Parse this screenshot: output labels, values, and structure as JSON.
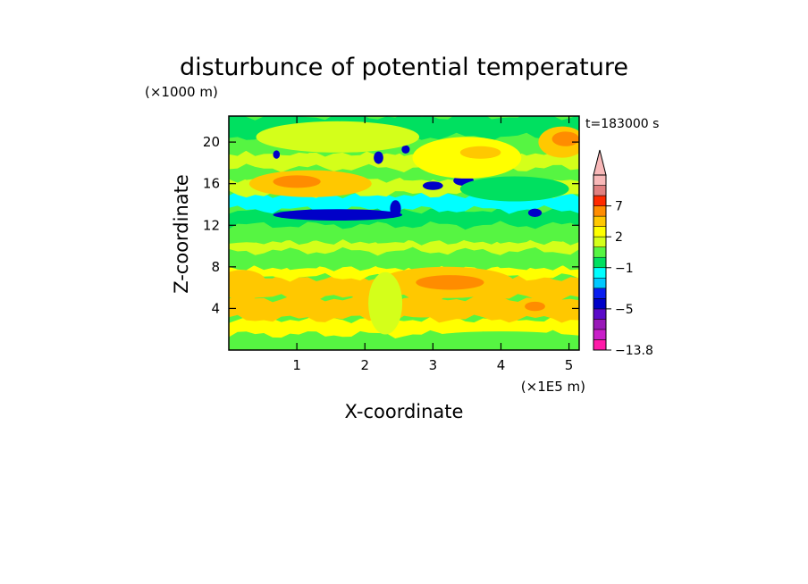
{
  "chart_data": {
    "type": "heatmap",
    "title": "disturbunce of potential temperature",
    "xlabel": "X-coordinate",
    "ylabel": "Z-coordinate",
    "x_unit": "(×1E5 m)",
    "y_unit": "(×1000 m)",
    "time_label": "t=183000 s",
    "xlim": [
      0,
      5.15
    ],
    "ylim": [
      0,
      22.5
    ],
    "x_ticks": [
      "1",
      "2",
      "3",
      "4",
      "5"
    ],
    "y_ticks": [
      "4",
      "8",
      "12",
      "16",
      "20"
    ],
    "x_tick_values": [
      1,
      2,
      3,
      4,
      5
    ],
    "y_tick_values": [
      4,
      8,
      12,
      16,
      20
    ],
    "colorbar": {
      "labels": [
        "7",
        "2",
        "−1",
        "−5",
        "−13.8"
      ],
      "label_values": [
        7,
        2,
        -1,
        -5,
        -13.8
      ],
      "levels": [
        -13.8,
        -11,
        -8,
        -6,
        -5,
        -4,
        -3,
        -2,
        -1,
        0,
        1,
        2,
        3,
        5,
        7,
        9,
        13
      ],
      "colors": [
        "#ff1aa8",
        "#c81ec8",
        "#9918b8",
        "#5a0ac8",
        "#0000c8",
        "#0a1ef0",
        "#00c8ff",
        "#00ffff",
        "#00e060",
        "#56f542",
        "#d4ff1a",
        "#ffff00",
        "#ffc800",
        "#ff8c00",
        "#ff2a00",
        "#e08080",
        "#f8b8b8"
      ],
      "extend": "max"
    },
    "bands": [
      {
        "z": [
          0,
          1.5
        ],
        "value": 0.5
      },
      {
        "z": [
          1.5,
          3
        ],
        "value": 2.5
      },
      {
        "z": [
          3,
          5
        ],
        "value": 3.2
      },
      {
        "z": [
          5,
          7
        ],
        "value": 3.5
      },
      {
        "z": [
          7,
          8
        ],
        "value": 2.5
      },
      {
        "z": [
          8,
          9.5
        ],
        "value": 0.5
      },
      {
        "z": [
          9.5,
          10.5
        ],
        "value": 1.5
      },
      {
        "z": [
          10.5,
          12
        ],
        "value": 0.5
      },
      {
        "z": [
          12,
          13.5
        ],
        "value": -0.5
      },
      {
        "z": [
          13.5,
          15
        ],
        "value": -1.5
      },
      {
        "z": [
          15,
          16.5
        ],
        "value": 1.5
      },
      {
        "z": [
          16.5,
          17.5
        ],
        "value": 0.5
      },
      {
        "z": [
          17.5,
          19
        ],
        "value": 1.5
      },
      {
        "z": [
          19,
          20.5
        ],
        "value": 0.5
      },
      {
        "z": [
          20.5,
          22.5
        ],
        "value": -0.5
      }
    ],
    "features": [
      {
        "x": 1.2,
        "z": 16.0,
        "rx": 0.9,
        "rz": 1.3,
        "value": 3.5
      },
      {
        "x": 1.0,
        "z": 16.2,
        "rx": 0.35,
        "rz": 0.6,
        "value": 5.5
      },
      {
        "x": 1.6,
        "z": 13.0,
        "rx": 0.95,
        "rz": 0.55,
        "value": -4.5
      },
      {
        "x": 2.45,
        "z": 13.6,
        "rx": 0.08,
        "rz": 0.8,
        "value": -4.5
      },
      {
        "x": 3.0,
        "z": 15.8,
        "rx": 0.15,
        "rz": 0.4,
        "value": -4.5
      },
      {
        "x": 3.45,
        "z": 16.3,
        "rx": 0.15,
        "rz": 0.5,
        "value": -4.5
      },
      {
        "x": 4.5,
        "z": 13.2,
        "rx": 0.1,
        "rz": 0.4,
        "value": -4.5
      },
      {
        "x": 0.7,
        "z": 18.8,
        "rx": 0.05,
        "rz": 0.4,
        "value": -4.5
      },
      {
        "x": 2.2,
        "z": 18.5,
        "rx": 0.07,
        "rz": 0.6,
        "value": -4.5
      },
      {
        "x": 2.6,
        "z": 19.3,
        "rx": 0.06,
        "rz": 0.4,
        "value": -4.5
      },
      {
        "x": 3.5,
        "z": 18.5,
        "rx": 0.8,
        "rz": 2.0,
        "value": 2.5
      },
      {
        "x": 3.7,
        "z": 19.0,
        "rx": 0.3,
        "rz": 0.6,
        "value": 4.0
      },
      {
        "x": 4.9,
        "z": 20.0,
        "rx": 0.35,
        "rz": 1.5,
        "value": 3.5
      },
      {
        "x": 4.95,
        "z": 20.3,
        "rx": 0.2,
        "rz": 0.7,
        "value": 5.5
      },
      {
        "x": 4.2,
        "z": 15.5,
        "rx": 0.8,
        "rz": 1.2,
        "value": -0.5
      },
      {
        "x": 1.6,
        "z": 20.5,
        "rx": 1.2,
        "rz": 1.5,
        "value": 1.5
      },
      {
        "x": 3.2,
        "z": 6.5,
        "rx": 1.0,
        "rz": 1.5,
        "value": 4.2
      },
      {
        "x": 3.25,
        "z": 6.5,
        "rx": 0.5,
        "rz": 0.7,
        "value": 5.5
      },
      {
        "x": 4.5,
        "z": 4.2,
        "rx": 0.15,
        "rz": 0.45,
        "value": 5.5
      },
      {
        "x": 0.2,
        "z": 6.5,
        "rx": 0.35,
        "rz": 1.2,
        "value": 3.2
      },
      {
        "x": 4.0,
        "z": 1.0,
        "rx": 1.2,
        "rz": 0.8,
        "value": 0.5
      },
      {
        "x": 2.3,
        "z": 4.5,
        "rx": 0.25,
        "rz": 3.0,
        "value": 1.5
      }
    ]
  }
}
